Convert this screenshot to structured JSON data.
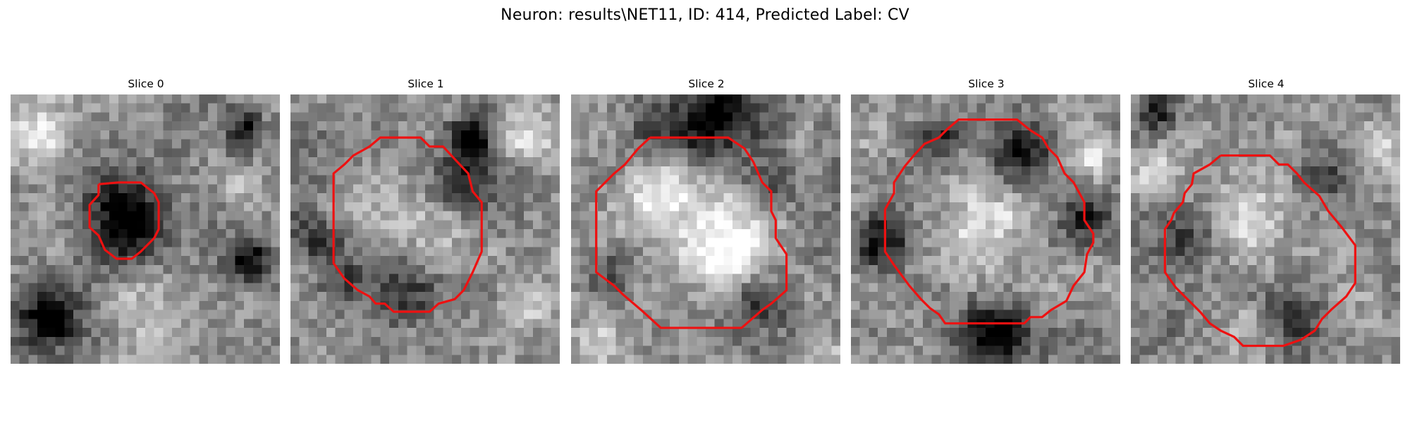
{
  "title": "Neuron: results\\NET11, ID: 414, Predicted Label: CV",
  "panels": [
    {
      "label": "Slice 0",
      "grid_size": 30,
      "dark_spots": [
        {
          "cx": 13,
          "cy": 14,
          "r": 4.5,
          "depth": 0.55
        },
        {
          "cx": 26,
          "cy": 4,
          "r": 2.2,
          "depth": 0.4
        },
        {
          "cx": 26.5,
          "cy": 18.5,
          "r": 2.5,
          "depth": 0.6
        },
        {
          "cx": 4,
          "cy": 24.5,
          "r": 3.5,
          "depth": 0.5
        },
        {
          "cx": 5,
          "cy": 25.5,
          "r": 1.3,
          "depth": 0.5
        }
      ],
      "light_spots": [
        {
          "cx": 3,
          "cy": 5,
          "r": 4,
          "lift": 0.35
        },
        {
          "cx": 16,
          "cy": 25,
          "r": 5,
          "lift": 0.3
        },
        {
          "cx": 26,
          "cy": 10,
          "r": 3,
          "lift": 0.25
        }
      ],
      "contour": [
        [
          9.8,
          10
        ],
        [
          12,
          9.8
        ],
        [
          14.5,
          9.8
        ],
        [
          16,
          11
        ],
        [
          16.5,
          12
        ],
        [
          16.5,
          15
        ],
        [
          16,
          16
        ],
        [
          14.5,
          17.5
        ],
        [
          13.5,
          18.3
        ],
        [
          11.8,
          18.3
        ],
        [
          10.5,
          17.3
        ],
        [
          9.8,
          15.7
        ],
        [
          8.8,
          14.8
        ],
        [
          8.8,
          12.3
        ],
        [
          9.8,
          11.2
        ],
        [
          9.8,
          10
        ]
      ]
    },
    {
      "label": "Slice 1",
      "grid_size": 30,
      "dark_spots": [
        {
          "cx": 20,
          "cy": 5,
          "r": 2.8,
          "depth": 0.6
        },
        {
          "cx": 19,
          "cy": 10,
          "r": 2.5,
          "depth": 0.35
        },
        {
          "cx": 6,
          "cy": 21,
          "r": 3,
          "depth": 0.3
        },
        {
          "cx": 13,
          "cy": 22,
          "r": 3.5,
          "depth": 0.35
        },
        {
          "cx": 3,
          "cy": 16,
          "r": 2.5,
          "depth": 0.35
        }
      ],
      "light_spots": [
        {
          "cx": 10,
          "cy": 12,
          "r": 4,
          "lift": 0.25
        },
        {
          "cx": 15,
          "cy": 17,
          "r": 4,
          "lift": 0.2
        },
        {
          "cx": 26,
          "cy": 5,
          "r": 3,
          "lift": 0.3
        },
        {
          "cx": 26,
          "cy": 24,
          "r": 3,
          "lift": 0.25
        }
      ],
      "contour": [
        [
          8.8,
          5.8
        ],
        [
          10,
          4.8
        ],
        [
          14.5,
          4.8
        ],
        [
          15.5,
          5.8
        ],
        [
          17,
          5.8
        ],
        [
          18.3,
          7.2
        ],
        [
          19.8,
          8.8
        ],
        [
          20.3,
          10.8
        ],
        [
          21.3,
          12
        ],
        [
          21.3,
          17.5
        ],
        [
          20.3,
          19.8
        ],
        [
          19.3,
          21.8
        ],
        [
          18.3,
          22.8
        ],
        [
          16.5,
          23.3
        ],
        [
          15.5,
          24.2
        ],
        [
          11.5,
          24.2
        ],
        [
          10.5,
          23.3
        ],
        [
          9.5,
          23.3
        ],
        [
          8.8,
          22.5
        ],
        [
          7.5,
          21.8
        ],
        [
          6,
          20.5
        ],
        [
          4.8,
          18.8
        ],
        [
          4.8,
          8.8
        ],
        [
          6,
          7.8
        ],
        [
          7,
          6.8
        ],
        [
          8.8,
          5.8
        ]
      ]
    },
    {
      "label": "Slice 2",
      "grid_size": 30,
      "dark_spots": [
        {
          "cx": 16,
          "cy": 3,
          "r": 4.5,
          "depth": 0.6
        },
        {
          "cx": 9,
          "cy": 5,
          "r": 3,
          "depth": 0.35
        },
        {
          "cx": 22,
          "cy": 10,
          "r": 3,
          "depth": 0.3
        },
        {
          "cx": 21,
          "cy": 24,
          "r": 3.5,
          "depth": 0.3
        },
        {
          "cx": 4,
          "cy": 20,
          "r": 2.5,
          "depth": 0.25
        }
      ],
      "light_spots": [
        {
          "cx": 10.5,
          "cy": 11,
          "r": 5,
          "lift": 0.45
        },
        {
          "cx": 17.5,
          "cy": 17,
          "r": 5,
          "lift": 0.45
        },
        {
          "cx": 3,
          "cy": 27,
          "r": 3,
          "lift": 0.3
        },
        {
          "cx": 28,
          "cy": 28,
          "r": 2.5,
          "lift": 0.25
        }
      ],
      "contour": [
        [
          8.8,
          4.8
        ],
        [
          17.5,
          4.8
        ],
        [
          19.3,
          6
        ],
        [
          20.3,
          7.5
        ],
        [
          21.3,
          9.8
        ],
        [
          22.3,
          10.8
        ],
        [
          22.3,
          13
        ],
        [
          22.8,
          14
        ],
        [
          22.8,
          16
        ],
        [
          24,
          17.8
        ],
        [
          24,
          21.8
        ],
        [
          22.3,
          23.3
        ],
        [
          21.3,
          24
        ],
        [
          19.8,
          25.3
        ],
        [
          19,
          26
        ],
        [
          10,
          26
        ],
        [
          7.8,
          24
        ],
        [
          5.8,
          22.3
        ],
        [
          4.8,
          21.3
        ],
        [
          2.8,
          19.8
        ],
        [
          2.8,
          10.8
        ],
        [
          4.8,
          8.8
        ],
        [
          6,
          7.8
        ],
        [
          7.5,
          6
        ],
        [
          8.8,
          4.8
        ]
      ]
    },
    {
      "label": "Slice 3",
      "grid_size": 30,
      "dark_spots": [
        {
          "cx": 19,
          "cy": 6,
          "r": 3.5,
          "depth": 0.55
        },
        {
          "cx": 16,
          "cy": 27,
          "r": 3.5,
          "depth": 0.55
        },
        {
          "cx": 3.5,
          "cy": 16,
          "r": 3,
          "depth": 0.45
        },
        {
          "cx": 26,
          "cy": 14,
          "r": 3,
          "depth": 0.4
        },
        {
          "cx": 10,
          "cy": 5,
          "r": 2.5,
          "depth": 0.4
        }
      ],
      "light_spots": [
        {
          "cx": 14,
          "cy": 15,
          "r": 6,
          "lift": 0.3
        },
        {
          "cx": 27,
          "cy": 7,
          "r": 2.5,
          "lift": 0.3
        },
        {
          "cx": 3,
          "cy": 5,
          "r": 2.5,
          "lift": 0.2
        }
      ],
      "contour": [
        [
          9.8,
          4.8
        ],
        [
          10.8,
          3.8
        ],
        [
          12,
          2.8
        ],
        [
          18.5,
          2.8
        ],
        [
          20,
          4
        ],
        [
          21.3,
          4.8
        ],
        [
          22,
          6
        ],
        [
          23,
          7
        ],
        [
          23.8,
          8.8
        ],
        [
          24.8,
          9.8
        ],
        [
          26,
          12
        ],
        [
          26,
          14
        ],
        [
          27,
          15.5
        ],
        [
          27,
          16.5
        ],
        [
          26.3,
          17.8
        ],
        [
          26,
          19.8
        ],
        [
          24.8,
          21.3
        ],
        [
          24,
          23
        ],
        [
          22.3,
          24
        ],
        [
          21.3,
          24.8
        ],
        [
          20,
          24.8
        ],
        [
          19.3,
          25.5
        ],
        [
          10.5,
          25.5
        ],
        [
          9.8,
          24.5
        ],
        [
          8.8,
          23.8
        ],
        [
          7.8,
          22.8
        ],
        [
          6.5,
          21.3
        ],
        [
          4.8,
          19
        ],
        [
          3.8,
          17.5
        ],
        [
          3.8,
          12.8
        ],
        [
          4.8,
          11
        ],
        [
          4.8,
          9.8
        ],
        [
          6,
          8
        ],
        [
          7,
          6.8
        ],
        [
          8.2,
          5.5
        ],
        [
          9.8,
          4.8
        ]
      ]
    },
    {
      "label": "Slice 4",
      "grid_size": 30,
      "dark_spots": [
        {
          "cx": 18,
          "cy": 25,
          "r": 3.5,
          "depth": 0.4
        },
        {
          "cx": 3,
          "cy": 2,
          "r": 2,
          "depth": 0.45
        },
        {
          "cx": 21,
          "cy": 9,
          "r": 3,
          "depth": 0.3
        },
        {
          "cx": 6,
          "cy": 16,
          "r": 3,
          "depth": 0.3
        }
      ],
      "light_spots": [
        {
          "cx": 14,
          "cy": 14,
          "r": 5,
          "lift": 0.25
        },
        {
          "cx": 3,
          "cy": 9,
          "r": 3,
          "lift": 0.35
        },
        {
          "cx": 28,
          "cy": 6,
          "r": 3,
          "lift": 0.3
        },
        {
          "cx": 14,
          "cy": 26,
          "r": 3,
          "lift": 0.2
        }
      ],
      "contour": [
        [
          10,
          6.8
        ],
        [
          15.5,
          6.8
        ],
        [
          16.5,
          7.8
        ],
        [
          17.5,
          7.8
        ],
        [
          18.5,
          8.8
        ],
        [
          19.3,
          9.8
        ],
        [
          21,
          11.3
        ],
        [
          22,
          13
        ],
        [
          23.5,
          14.8
        ],
        [
          25,
          16.8
        ],
        [
          25,
          21
        ],
        [
          24,
          22.5
        ],
        [
          22.3,
          24
        ],
        [
          21.3,
          25
        ],
        [
          20.5,
          26.3
        ],
        [
          19,
          27.3
        ],
        [
          17,
          28
        ],
        [
          12.5,
          28
        ],
        [
          11.5,
          27
        ],
        [
          10,
          26.3
        ],
        [
          8.8,
          25.5
        ],
        [
          7.8,
          24.3
        ],
        [
          6.5,
          23
        ],
        [
          5,
          21.5
        ],
        [
          3.8,
          19.8
        ],
        [
          3.8,
          15
        ],
        [
          4.5,
          14
        ],
        [
          4.8,
          13.2
        ],
        [
          5.8,
          12
        ],
        [
          6,
          11
        ],
        [
          6.8,
          10
        ],
        [
          7,
          8.8
        ],
        [
          8.8,
          7.8
        ],
        [
          10,
          6.8
        ]
      ]
    }
  ]
}
